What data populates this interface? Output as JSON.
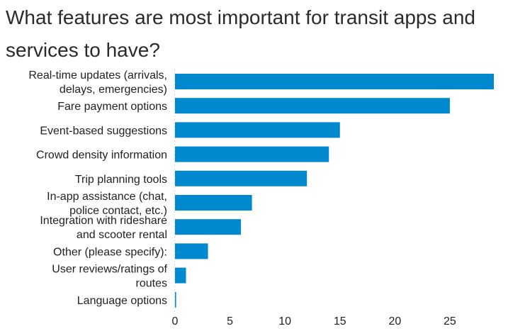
{
  "chart_data": {
    "type": "bar",
    "orientation": "horizontal",
    "title": "What features are most important for transit apps and services to have?",
    "categories": [
      [
        "Real-time updates (arrivals,",
        "delays, emergencies)"
      ],
      [
        "Fare payment options"
      ],
      [
        "Event-based suggestions"
      ],
      [
        "Crowd density information"
      ],
      [
        "Trip planning tools"
      ],
      [
        "In-app assistance (chat,",
        "police contact, etc.)"
      ],
      [
        "Integration with rideshare",
        "and scooter rental"
      ],
      [
        "Other (please specify):"
      ],
      [
        "User reviews/ratings of",
        "routes"
      ],
      [
        "Language options"
      ]
    ],
    "values": [
      29,
      25,
      15,
      14,
      12,
      7,
      6,
      3,
      1,
      0.1
    ],
    "xlim": [
      0,
      29
    ],
    "xticks": [
      0,
      5,
      10,
      15,
      20,
      25
    ],
    "grid": false,
    "bar_color": "#0089cf"
  }
}
